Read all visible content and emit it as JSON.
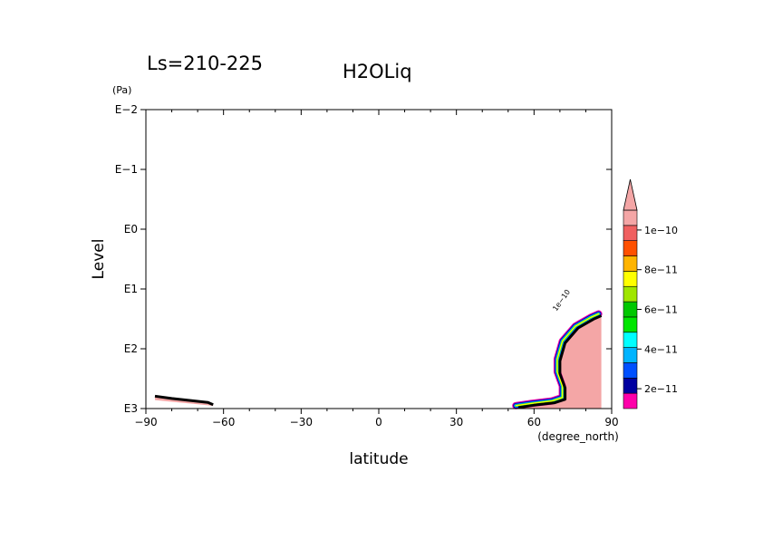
{
  "chart_data": {
    "type": "contour",
    "title": "H2OLiq",
    "subtitle": "Ls=210-225",
    "xlabel": "latitude",
    "x_unit": "(degree_north)",
    "ylabel": "Level",
    "y_unit": "(Pa)",
    "xlim": [
      -90,
      90
    ],
    "ylim": [
      1000,
      0.01
    ],
    "y_scale": "log",
    "x_ticks": [
      {
        "value": -90,
        "label": "−90"
      },
      {
        "value": -60,
        "label": "−60"
      },
      {
        "value": -30,
        "label": "−30"
      },
      {
        "value": 0,
        "label": "0"
      },
      {
        "value": 30,
        "label": "30"
      },
      {
        "value": 60,
        "label": "60"
      },
      {
        "value": 90,
        "label": "90"
      }
    ],
    "y_ticks": [
      {
        "value": 0.01,
        "label": "E−2"
      },
      {
        "value": 0.1,
        "label": "E−1"
      },
      {
        "value": 1,
        "label": "E0"
      },
      {
        "value": 10,
        "label": "E1"
      },
      {
        "value": 100,
        "label": "E2"
      },
      {
        "value": 1000,
        "label": "E3"
      }
    ],
    "colorbar": {
      "colors": [
        "#ff00aa",
        "#0000a0",
        "#0050ff",
        "#00b4ff",
        "#00ffff",
        "#00e600",
        "#00c800",
        "#a0e600",
        "#ffff00",
        "#ffb400",
        "#ff5000",
        "#f06060",
        "#f4a6a6"
      ],
      "tick_labels": [
        {
          "value": 2e-11,
          "label": "2e−11"
        },
        {
          "value": 4e-11,
          "label": "4e−11"
        },
        {
          "value": 6e-11,
          "label": "6e−11"
        },
        {
          "value": 8e-11,
          "label": "8e−11"
        },
        {
          "value": 1e-10,
          "label": "1e−10"
        }
      ],
      "min": 1e-11,
      "max": 1.1e-10,
      "extend": "max"
    },
    "contour_label": "1e−10",
    "regions": [
      {
        "name": "south-polar",
        "fill": "#f4a6a6",
        "points": [
          [
            -86.5,
            620
          ],
          [
            -80,
            680
          ],
          [
            -72,
            740
          ],
          [
            -66,
            790
          ],
          [
            -64,
            860
          ],
          [
            -64,
            900
          ],
          [
            -70,
            850
          ],
          [
            -80,
            770
          ],
          [
            -86.5,
            720
          ]
        ]
      },
      {
        "name": "north-polar",
        "fill": "#f4a6a6",
        "points": [
          [
            54,
            960
          ],
          [
            60,
            880
          ],
          [
            68,
            800
          ],
          [
            72,
            700
          ],
          [
            72,
            450
          ],
          [
            70,
            260
          ],
          [
            70,
            160
          ],
          [
            72,
            80
          ],
          [
            77,
            45
          ],
          [
            83,
            32
          ],
          [
            86,
            30
          ],
          [
            86,
            1000
          ],
          [
            54,
            1000
          ]
        ]
      }
    ],
    "bands": [
      {
        "color": "#ff00aa",
        "width": 8.0
      },
      {
        "color": "#0000a0",
        "width": 6.0
      },
      {
        "color": "#0050ff",
        "width": 4.5
      },
      {
        "color": "#00b4ff",
        "width": 3.2
      },
      {
        "color": "#00e600",
        "width": 2.2
      },
      {
        "color": "#ffff00",
        "width": 1.4
      }
    ],
    "north_edge": [
      [
        54,
        960
      ],
      [
        60,
        880
      ],
      [
        68,
        800
      ],
      [
        72,
        700
      ],
      [
        72,
        450
      ],
      [
        70,
        260
      ],
      [
        70,
        160
      ],
      [
        72,
        80
      ],
      [
        77,
        45
      ],
      [
        83,
        32
      ],
      [
        86,
        28
      ]
    ],
    "south_edge": [
      [
        -86.5,
        620
      ],
      [
        -80,
        680
      ],
      [
        -72,
        740
      ],
      [
        -66,
        790
      ],
      [
        -64,
        860
      ]
    ]
  }
}
